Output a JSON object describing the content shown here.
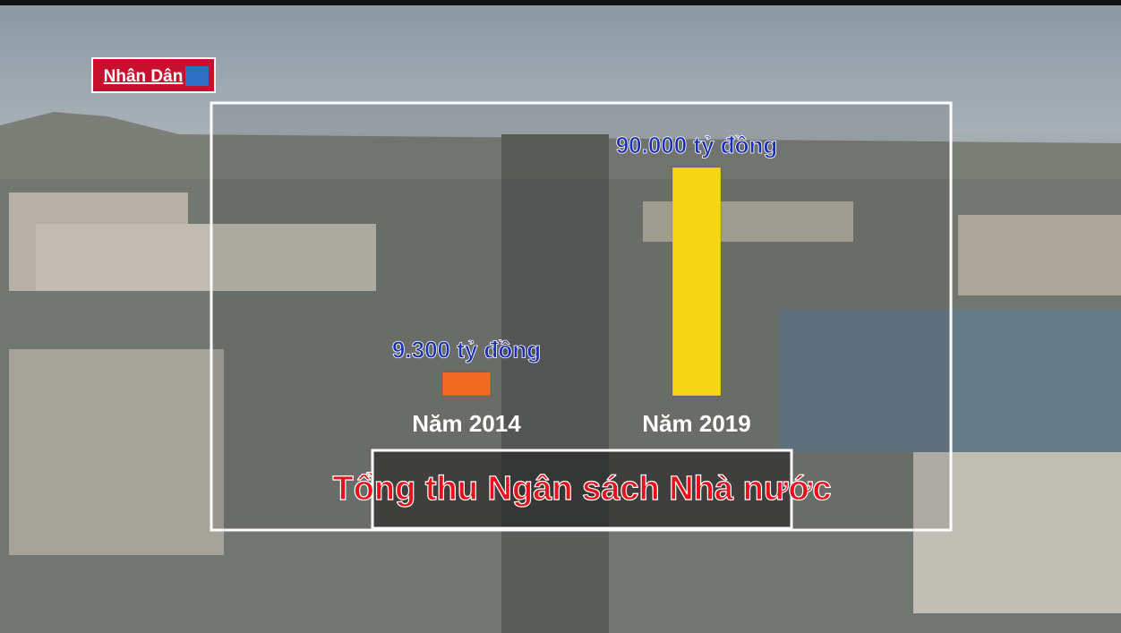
{
  "logo": "Nhân Dân",
  "chart_data": {
    "type": "bar",
    "title": "Tổng thu Ngân sách Nhà nước",
    "categories": [
      "Năm 2014",
      "Năm 2019"
    ],
    "values": [
      9300,
      90000
    ],
    "value_labels": [
      "9.300 tỷ đồng",
      "90.000 tỷ đồng"
    ],
    "colors": [
      "#f26a21",
      "#f5d715"
    ]
  }
}
